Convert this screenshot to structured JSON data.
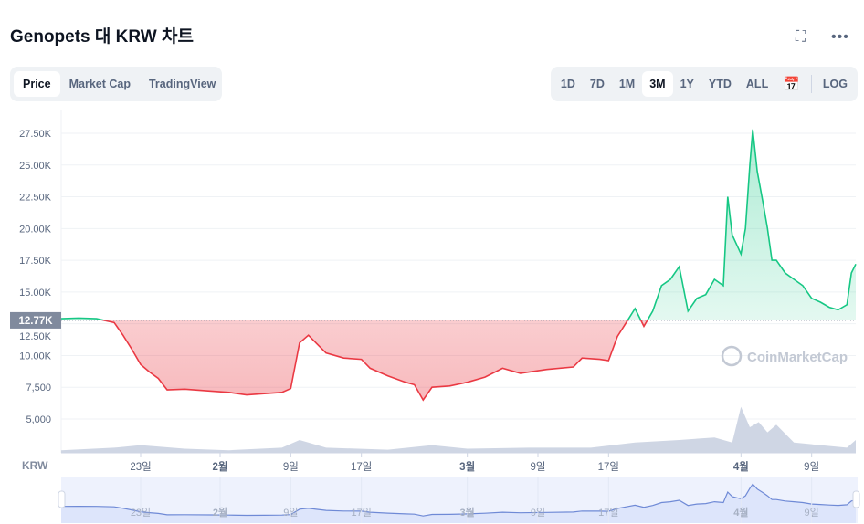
{
  "header": {
    "title": "Genopets 대 KRW 차트",
    "fullscreen_icon": "expand-icon",
    "more_icon": "more-dots-icon"
  },
  "tabs": [
    {
      "label": "Price",
      "active": true
    },
    {
      "label": "Market Cap"
    },
    {
      "label": "TradingView"
    }
  ],
  "ranges": [
    {
      "label": "1D"
    },
    {
      "label": "7D"
    },
    {
      "label": "1M"
    },
    {
      "label": "3M",
      "active": true
    },
    {
      "label": "1Y"
    },
    {
      "label": "YTD"
    },
    {
      "label": "ALL"
    }
  ],
  "calendar_icon": "calendar-icon",
  "log_label": "LOG",
  "watermark": "CoinMarketCap",
  "chart_data": {
    "type": "area",
    "currency_label": "KRW",
    "baseline": 12770,
    "baseline_label": "12.77K",
    "ylim": [
      2500,
      30000
    ],
    "xlim": [
      "01-14",
      "04-14"
    ],
    "yticks": [
      {
        "v": 5000,
        "label": "5,000"
      },
      {
        "v": 7500,
        "label": "7,500"
      },
      {
        "v": 10000,
        "label": "10.00K"
      },
      {
        "v": 12500,
        "label": "12.50K"
      },
      {
        "v": 15000,
        "label": "15.00K"
      },
      {
        "v": 17500,
        "label": "17.50K"
      },
      {
        "v": 20000,
        "label": "20.00K"
      },
      {
        "v": 22500,
        "label": "22.50K"
      },
      {
        "v": 25000,
        "label": "25.00K"
      },
      {
        "v": 27500,
        "label": "27.50K"
      }
    ],
    "xticks": [
      {
        "d": "01-23",
        "label": "23일"
      },
      {
        "d": "02-01",
        "label": "2월",
        "bold": true
      },
      {
        "d": "02-09",
        "label": "9일"
      },
      {
        "d": "02-17",
        "label": "17일"
      },
      {
        "d": "03-01",
        "label": "3월",
        "bold": true
      },
      {
        "d": "03-09",
        "label": "9일"
      },
      {
        "d": "03-17",
        "label": "17일"
      },
      {
        "d": "04-01",
        "label": "4월",
        "bold": true
      },
      {
        "d": "04-09",
        "label": "9일"
      }
    ],
    "colors": {
      "up": "#16c784",
      "down": "#ea3943",
      "volume": "#cfd6e4",
      "navigator": "#6f8ad6"
    },
    "series": [
      [
        "01-14",
        12900
      ],
      [
        "01-16",
        12950
      ],
      [
        "01-18",
        12900
      ],
      [
        "01-20",
        12600
      ],
      [
        "01-21",
        11600
      ],
      [
        "01-22",
        10500
      ],
      [
        "01-23",
        9300
      ],
      [
        "01-24",
        8700
      ],
      [
        "01-25",
        8200
      ],
      [
        "01-26",
        7300
      ],
      [
        "01-28",
        7350
      ],
      [
        "01-31",
        7200
      ],
      [
        "02-02",
        7100
      ],
      [
        "02-04",
        6900
      ],
      [
        "02-06",
        7000
      ],
      [
        "02-08",
        7100
      ],
      [
        "02-09",
        7400
      ],
      [
        "02-10",
        11000
      ],
      [
        "02-11",
        11600
      ],
      [
        "02-12",
        10900
      ],
      [
        "02-13",
        10200
      ],
      [
        "02-15",
        9800
      ],
      [
        "02-17",
        9700
      ],
      [
        "02-18",
        9000
      ],
      [
        "02-20",
        8400
      ],
      [
        "02-22",
        7900
      ],
      [
        "02-23",
        7700
      ],
      [
        "02-24",
        6500
      ],
      [
        "02-25",
        7500
      ],
      [
        "02-27",
        7600
      ],
      [
        "03-01",
        7900
      ],
      [
        "03-03",
        8300
      ],
      [
        "03-05",
        9000
      ],
      [
        "03-07",
        8600
      ],
      [
        "03-10",
        8900
      ],
      [
        "03-13",
        9100
      ],
      [
        "03-14",
        9800
      ],
      [
        "03-16",
        9700
      ],
      [
        "03-17",
        9600
      ],
      [
        "03-18",
        11500
      ],
      [
        "03-19",
        12600
      ],
      [
        "03-20",
        13700
      ],
      [
        "03-21",
        12300
      ],
      [
        "03-22",
        13500
      ],
      [
        "03-23",
        15500
      ],
      [
        "03-24",
        16000
      ],
      [
        "03-25",
        17000
      ],
      [
        "03-26",
        13500
      ],
      [
        "03-27",
        14500
      ],
      [
        "03-28",
        14800
      ],
      [
        "03-29",
        16000
      ],
      [
        "03-30",
        15500
      ],
      [
        "03-30 12",
        22500
      ],
      [
        "03-31",
        19500
      ],
      [
        "04-01",
        18000
      ],
      [
        "04-01 12",
        20000
      ],
      [
        "04-02",
        25000
      ],
      [
        "04-02 08",
        27800
      ],
      [
        "04-02 20",
        24500
      ],
      [
        "04-03 12",
        22000
      ],
      [
        "04-04",
        20000
      ],
      [
        "04-04 12",
        17500
      ],
      [
        "04-05",
        17500
      ],
      [
        "04-06",
        16500
      ],
      [
        "04-07",
        16000
      ],
      [
        "04-08",
        15500
      ],
      [
        "04-09",
        14500
      ],
      [
        "04-10",
        14200
      ],
      [
        "04-11",
        13800
      ],
      [
        "04-12",
        13600
      ],
      [
        "04-13",
        14000
      ],
      [
        "04-13 12",
        16500
      ],
      [
        "04-14",
        17200
      ]
    ],
    "volume_relative": [
      [
        "01-14",
        0.05
      ],
      [
        "01-20",
        0.1
      ],
      [
        "01-23",
        0.15
      ],
      [
        "01-28",
        0.08
      ],
      [
        "02-02",
        0.05
      ],
      [
        "02-08",
        0.1
      ],
      [
        "02-10",
        0.25
      ],
      [
        "02-13",
        0.1
      ],
      [
        "02-20",
        0.06
      ],
      [
        "02-25",
        0.15
      ],
      [
        "03-01",
        0.08
      ],
      [
        "03-08",
        0.1
      ],
      [
        "03-15",
        0.1
      ],
      [
        "03-20",
        0.2
      ],
      [
        "03-25",
        0.25
      ],
      [
        "03-29",
        0.3
      ],
      [
        "03-31",
        0.2
      ],
      [
        "04-01",
        0.9
      ],
      [
        "04-02",
        0.5
      ],
      [
        "04-03",
        0.6
      ],
      [
        "04-04",
        0.4
      ],
      [
        "04-05",
        0.55
      ],
      [
        "04-07",
        0.2
      ],
      [
        "04-10",
        0.15
      ],
      [
        "04-13",
        0.1
      ],
      [
        "04-14",
        0.25
      ]
    ]
  }
}
